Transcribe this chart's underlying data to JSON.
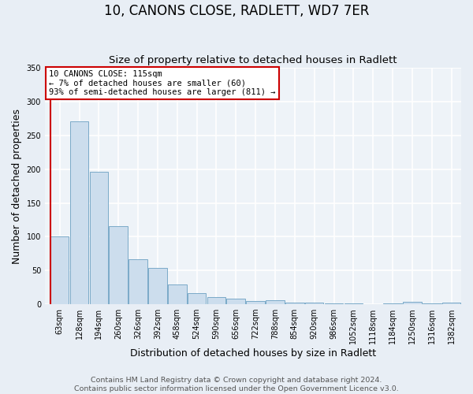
{
  "title": "10, CANONS CLOSE, RADLETT, WD7 7ER",
  "subtitle": "Size of property relative to detached houses in Radlett",
  "xlabel": "Distribution of detached houses by size in Radlett",
  "ylabel": "Number of detached properties",
  "categories": [
    "63sqm",
    "128sqm",
    "194sqm",
    "260sqm",
    "326sqm",
    "392sqm",
    "458sqm",
    "524sqm",
    "590sqm",
    "656sqm",
    "722sqm",
    "788sqm",
    "854sqm",
    "920sqm",
    "986sqm",
    "1052sqm",
    "1118sqm",
    "1184sqm",
    "1250sqm",
    "1316sqm",
    "1382sqm"
  ],
  "values": [
    100,
    271,
    196,
    116,
    67,
    54,
    29,
    17,
    11,
    8,
    5,
    6,
    2,
    2,
    1,
    1,
    0,
    1,
    4,
    1,
    2
  ],
  "bar_color": "#ccdded",
  "bar_edge_color": "#7aaac8",
  "annotation_line1": "10 CANONS CLOSE: 115sqm",
  "annotation_line2": "← 7% of detached houses are smaller (60)",
  "annotation_line3": "93% of semi-detached houses are larger (811) →",
  "annotation_box_color": "#ffffff",
  "annotation_box_edge_color": "#cc0000",
  "red_line_color": "#cc0000",
  "footer_line1": "Contains HM Land Registry data © Crown copyright and database right 2024.",
  "footer_line2": "Contains public sector information licensed under the Open Government Licence v3.0.",
  "ylim": [
    0,
    350
  ],
  "yticks": [
    0,
    50,
    100,
    150,
    200,
    250,
    300,
    350
  ],
  "bg_color": "#e8eef5",
  "plot_bg_color": "#eef3f8",
  "grid_color": "#ffffff",
  "title_fontsize": 12,
  "subtitle_fontsize": 9.5,
  "axis_label_fontsize": 9,
  "tick_fontsize": 7,
  "footer_fontsize": 6.8
}
